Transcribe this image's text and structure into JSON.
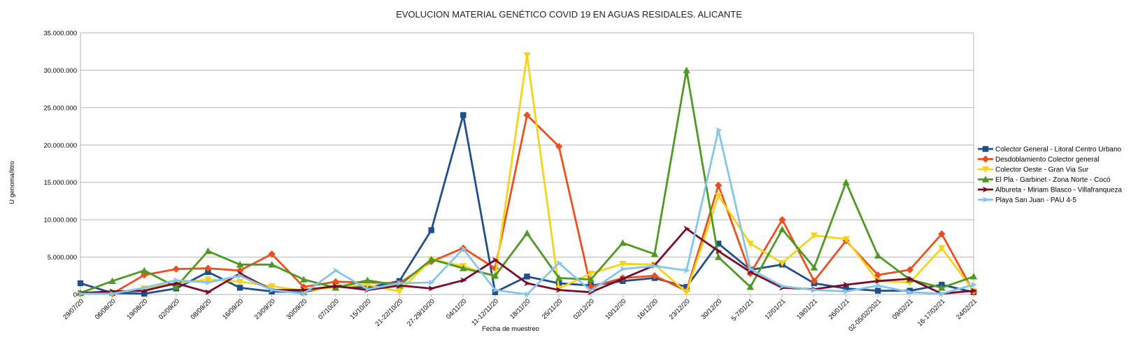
{
  "chart_data": {
    "type": "line",
    "title": "EVOLUCION  MATERIAL GENÉTICO COVID 19 EN AGUAS RESIDALES. ALICANTE",
    "xlabel": "Fecha de muestreo",
    "ylabel": "U genoma/litro",
    "ylim": [
      0,
      35000000
    ],
    "yticks": [
      0,
      5000000,
      10000000,
      15000000,
      20000000,
      25000000,
      30000000,
      35000000
    ],
    "ytick_labels": [
      "0",
      "5.000.000",
      "10.000.000",
      "15.000.000",
      "20.000.000",
      "25.000.000",
      "30.000.000",
      "35.000.000"
    ],
    "grid": true,
    "legend_position": "right",
    "categories": [
      "29/07/20",
      "06/08/20",
      "19/08/20",
      "02/09/20",
      "08/09/20",
      "16/09/20",
      "23/09/20",
      "30/09/20",
      "07/10/20",
      "15/10/20",
      "21-22/10/20",
      "27-29/10/20",
      "04/11/20",
      "11-12/11/20",
      "18/11/20",
      "25/11/20",
      "02/12/20",
      "10/12/20",
      "16/12/20",
      "23/12/20",
      "30/12/20",
      "5-7/01/21",
      "12/01/21",
      "19/01/21",
      "26/01/21",
      "02-05/02/2021",
      "09/02/21",
      "16-17/02/21",
      "24/02/21"
    ],
    "series": [
      {
        "name": "Colector General - Litoral Centro Urbano",
        "color": "#1f4e8c",
        "marker": "square",
        "values": [
          1500000,
          200000,
          100000,
          800000,
          3000000,
          900000,
          400000,
          300000,
          1200000,
          900000,
          1800000,
          8600000,
          24000000,
          300000,
          2400000,
          1500000,
          1200000,
          1800000,
          2200000,
          1000000,
          6800000,
          3300000,
          4000000,
          1500000,
          800000,
          500000,
          500000,
          1300000,
          300000
        ]
      },
      {
        "name": "Desdoblamiento Colector general",
        "color": "#e8501f",
        "marker": "diamond",
        "values": [
          100000,
          100000,
          2600000,
          3400000,
          3500000,
          3200000,
          5400000,
          1000000,
          1700000,
          1600000,
          1500000,
          4400000,
          6200000,
          3500000,
          24000000,
          19800000,
          1000000,
          2200000,
          2500000,
          500000,
          14600000,
          2800000,
          10000000,
          1800000,
          7200000,
          2600000,
          3300000,
          8100000,
          300000
        ]
      },
      {
        "name": "Colector Oeste - Gran Via Sur",
        "color": "#f5d31a",
        "marker": "triangle-down",
        "values": [
          100000,
          200000,
          800000,
          1500000,
          2000000,
          1700000,
          1100000,
          500000,
          1000000,
          1300000,
          400000,
          4700000,
          3800000,
          2400000,
          32000000,
          800000,
          2800000,
          4100000,
          4000000,
          300000,
          13200000,
          6800000,
          4200000,
          7900000,
          7400000,
          1800000,
          1600000,
          6200000,
          500000
        ]
      },
      {
        "name": "El Pla - Garbinet - Zona Norte - Cocó",
        "color": "#4c9a1f",
        "marker": "triangle",
        "values": [
          200000,
          1800000,
          3200000,
          1000000,
          5800000,
          4000000,
          4000000,
          2000000,
          900000,
          1900000,
          1200000,
          4700000,
          3500000,
          2500000,
          8200000,
          2200000,
          2000000,
          6900000,
          5400000,
          30000000,
          5000000,
          1000000,
          8700000,
          3600000,
          15000000,
          5200000,
          2000000,
          900000,
          2400000
        ]
      },
      {
        "name": "Albureta - Miriam Blasco - Villafranqueza",
        "color": "#7b0a28",
        "marker": "arrow",
        "values": [
          200000,
          400000,
          500000,
          1500000,
          300000,
          2800000,
          600000,
          600000,
          1100000,
          600000,
          1200000,
          800000,
          1900000,
          4600000,
          1500000,
          600000,
          300000,
          2100000,
          3900000,
          8800000,
          5800000,
          3000000,
          900000,
          700000,
          1300000,
          1800000,
          2100000,
          100000,
          500000
        ]
      },
      {
        "name": "Playa San Juan - PAU 4-5",
        "color": "#83c5ec",
        "marker": "arrow",
        "values": [
          100000,
          100000,
          900000,
          1900000,
          1600000,
          2500000,
          600000,
          100000,
          3200000,
          700000,
          1500000,
          1600000,
          6100000,
          600000,
          0,
          4200000,
          500000,
          3400000,
          3800000,
          3200000,
          22000000,
          3400000,
          1100000,
          600000,
          400000,
          1200000,
          300000,
          100000,
          1300000
        ]
      }
    ]
  }
}
